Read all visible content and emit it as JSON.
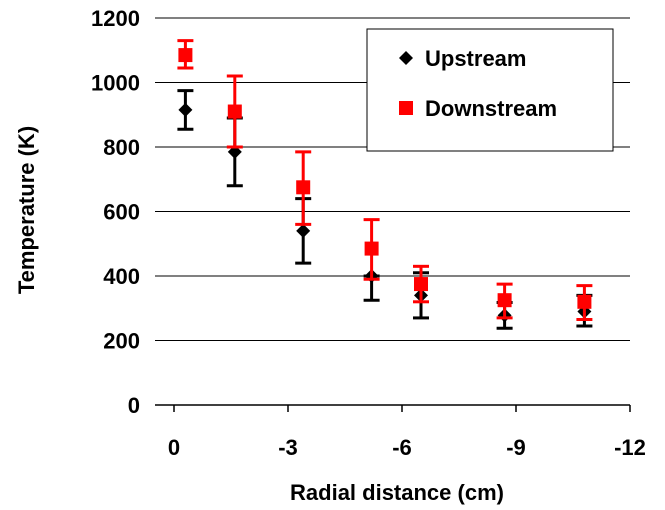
{
  "chart_data": {
    "type": "scatter",
    "xlabel": "Radial distance (cm)",
    "ylabel": "Temperature (K)",
    "xlim": [
      0.5,
      -12
    ],
    "ylim": [
      0,
      1200
    ],
    "x_ticks": [
      0,
      -3,
      -6,
      -9,
      -12
    ],
    "x_tick_labels": [
      "0",
      "-3",
      "-6",
      "-9",
      "-12"
    ],
    "y_ticks": [
      0,
      200,
      400,
      600,
      800,
      1000,
      1200
    ],
    "y_tick_labels": [
      "0",
      "200",
      "400",
      "600",
      "800",
      "1000",
      "1200"
    ],
    "grid": "horizontal",
    "legend_position": "top-right",
    "series": [
      {
        "name": "Upstream",
        "marker": "diamond",
        "color": "#000000",
        "points": [
          {
            "x": -0.3,
            "y": 915,
            "err_low": 855,
            "err_high": 975
          },
          {
            "x": -1.6,
            "y": 785,
            "err_low": 680,
            "err_high": 890
          },
          {
            "x": -3.4,
            "y": 540,
            "err_low": 440,
            "err_high": 640
          },
          {
            "x": -5.2,
            "y": 400,
            "err_low": 325,
            "err_high": 400
          },
          {
            "x": -6.5,
            "y": 340,
            "err_low": 270,
            "err_high": 410
          },
          {
            "x": -8.7,
            "y": 278,
            "err_low": 238,
            "err_high": 318
          },
          {
            "x": -10.8,
            "y": 290,
            "err_low": 245,
            "err_high": 340
          }
        ]
      },
      {
        "name": "Downstream",
        "marker": "square",
        "color": "#ff0000",
        "points": [
          {
            "x": -0.3,
            "y": 1085,
            "err_low": 1045,
            "err_high": 1130
          },
          {
            "x": -1.6,
            "y": 910,
            "err_low": 800,
            "err_high": 1020
          },
          {
            "x": -3.4,
            "y": 675,
            "err_low": 560,
            "err_high": 785
          },
          {
            "x": -5.2,
            "y": 485,
            "err_low": 390,
            "err_high": 575
          },
          {
            "x": -6.5,
            "y": 375,
            "err_low": 320,
            "err_high": 430
          },
          {
            "x": -8.7,
            "y": 325,
            "err_low": 270,
            "err_high": 375
          },
          {
            "x": -10.8,
            "y": 320,
            "err_low": 265,
            "err_high": 370
          }
        ]
      }
    ]
  }
}
